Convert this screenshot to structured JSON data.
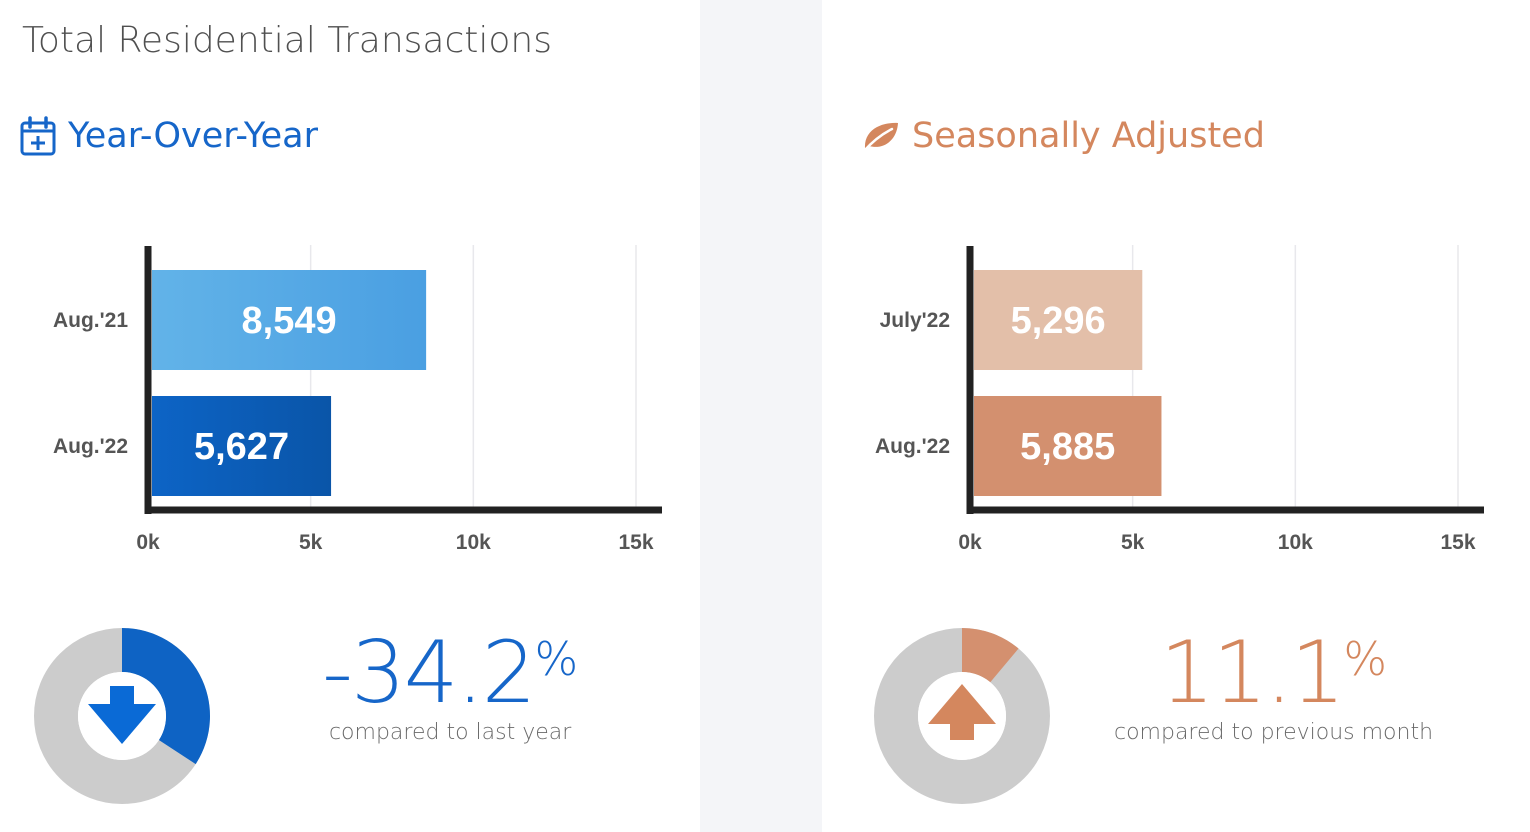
{
  "page": {
    "title": "Total Residential Transactions"
  },
  "colors": {
    "blue": "#1666c9",
    "blue_light": "#5fb1e8",
    "blue_dark": "#0b5ab5",
    "orange": "#d4875e",
    "orange_light": "#e3bea8",
    "orange_mid": "#d3906f",
    "donut_gray": "#cccccc"
  },
  "yoy": {
    "heading": "Year-Over-Year",
    "icon": "calendar-plus-icon",
    "change_value": "-34.2",
    "change_unit": "%",
    "caption": "compared to last year",
    "direction": "down",
    "direction_icon": "arrow-down-icon",
    "donut_fraction": 0.342
  },
  "sa": {
    "heading": "Seasonally Adjusted",
    "icon": "leaf-icon",
    "change_value": "11.1",
    "change_unit": "%",
    "caption": "compared to previous month",
    "direction": "up",
    "direction_icon": "arrow-up-icon",
    "donut_fraction": 0.111
  },
  "chart_data": [
    {
      "type": "bar",
      "orientation": "horizontal",
      "categories": [
        "Aug.'21",
        "Aug.'22"
      ],
      "values": [
        8549,
        5627
      ],
      "value_labels": [
        "8,549",
        "5,627"
      ],
      "xlim": [
        0,
        15000
      ],
      "xticks": [
        0,
        5000,
        10000,
        15000
      ],
      "xtick_labels": [
        "0k",
        "5k",
        "10k",
        "15k"
      ],
      "bar_colors": [
        [
          "#62b3e8",
          "#4a9fe2"
        ],
        [
          "#0d64c6",
          "#0a55a8"
        ]
      ],
      "grid": true,
      "legend": "none"
    },
    {
      "type": "bar",
      "orientation": "horizontal",
      "categories": [
        "July'22",
        "Aug.'22"
      ],
      "values": [
        5296,
        5885
      ],
      "value_labels": [
        "5,296",
        "5,885"
      ],
      "xlim": [
        0,
        15000
      ],
      "xticks": [
        0,
        5000,
        10000,
        15000
      ],
      "xtick_labels": [
        "0k",
        "5k",
        "10k",
        "15k"
      ],
      "bar_colors": [
        [
          "#e3bfa9",
          "#e3bfa9"
        ],
        [
          "#d3906f",
          "#d3906f"
        ]
      ],
      "grid": true,
      "legend": "none"
    },
    {
      "type": "pie",
      "variant": "donut",
      "values": [
        34.2,
        65.8
      ],
      "colors": [
        "#0e63c4",
        "#cccccc"
      ]
    },
    {
      "type": "pie",
      "variant": "donut",
      "values": [
        11.1,
        88.9
      ],
      "colors": [
        "#d4906f",
        "#cccccc"
      ]
    }
  ]
}
